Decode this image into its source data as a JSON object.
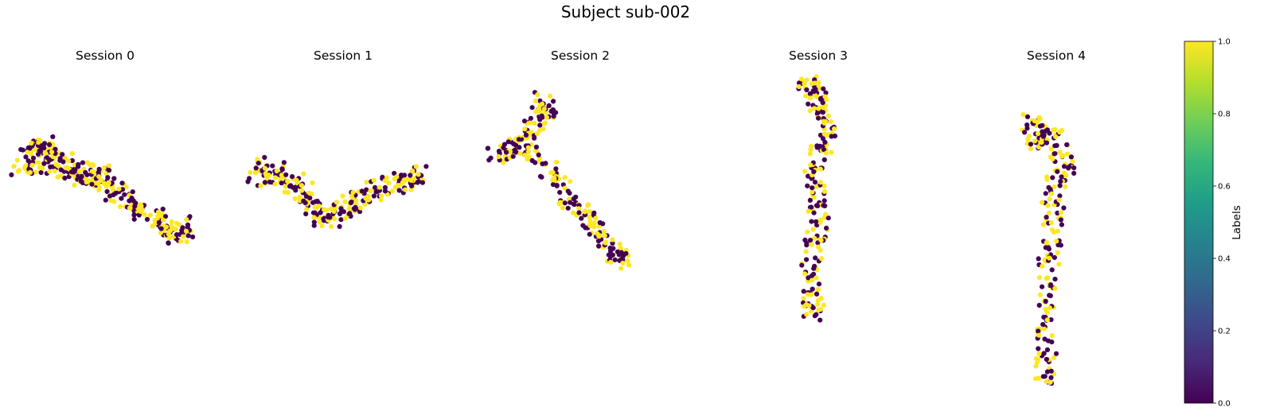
{
  "title": "Subject sub-002",
  "colormap": {
    "name": "viridis",
    "low_color": "#440154",
    "high_color": "#fde725",
    "stops": [
      "#440154",
      "#482878",
      "#3e4989",
      "#31688e",
      "#26828e",
      "#1f9e89",
      "#35b779",
      "#6ece58",
      "#b5de2b",
      "#fde725"
    ]
  },
  "colorbar": {
    "label": "Labels",
    "range": [
      0.0,
      1.0
    ],
    "ticks": [
      "0.0",
      "0.2",
      "0.4",
      "0.6",
      "0.8",
      "1.0"
    ],
    "tick_values": [
      0.0,
      0.2,
      0.4,
      0.6,
      0.8,
      1.0
    ]
  },
  "chart_data": [
    {
      "type": "scatter",
      "title": "Session 0",
      "axes_visible": false,
      "xlim": [
        -1,
        1
      ],
      "ylim": [
        -1,
        1
      ],
      "points": [
        {
          "x": -0.91,
          "y": 0.46,
          "label": 0
        },
        {
          "x": -0.82,
          "y": 0.61,
          "label": 1
        },
        {
          "x": -0.76,
          "y": 0.72,
          "label": 0
        },
        {
          "x": -0.71,
          "y": 0.62,
          "label": 1
        },
        {
          "x": -0.73,
          "y": 0.49,
          "label": 0
        },
        {
          "x": -0.66,
          "y": 0.71,
          "label": 1
        },
        {
          "x": -0.6,
          "y": 0.55,
          "label": 0
        },
        {
          "x": -0.54,
          "y": 0.44,
          "label": 1
        },
        {
          "x": -0.47,
          "y": 0.51,
          "label": 0
        },
        {
          "x": -0.38,
          "y": 0.42,
          "label": 1
        },
        {
          "x": -0.3,
          "y": 0.32,
          "label": 0
        },
        {
          "x": -0.22,
          "y": 0.38,
          "label": 1
        },
        {
          "x": -0.14,
          "y": 0.28,
          "label": 0
        },
        {
          "x": -0.06,
          "y": 0.35,
          "label": 1
        },
        {
          "x": 0.03,
          "y": 0.22,
          "label": 0
        },
        {
          "x": 0.12,
          "y": 0.12,
          "label": 1
        },
        {
          "x": 0.22,
          "y": 0.05,
          "label": 0
        },
        {
          "x": 0.31,
          "y": -0.04,
          "label": 1
        },
        {
          "x": 0.41,
          "y": -0.12,
          "label": 0
        },
        {
          "x": 0.52,
          "y": -0.2,
          "label": 1
        },
        {
          "x": 0.62,
          "y": -0.29,
          "label": 0
        },
        {
          "x": 0.71,
          "y": -0.36,
          "label": 1
        },
        {
          "x": 0.8,
          "y": -0.42,
          "label": 0
        },
        {
          "x": 0.86,
          "y": -0.3,
          "label": 1
        }
      ]
    },
    {
      "type": "scatter",
      "title": "Session 1",
      "axes_visible": false,
      "xlim": [
        -1,
        1
      ],
      "ylim": [
        -1,
        1
      ],
      "points": [
        {
          "x": -0.88,
          "y": 0.3,
          "label": 0
        },
        {
          "x": -0.79,
          "y": 0.44,
          "label": 1
        },
        {
          "x": -0.68,
          "y": 0.38,
          "label": 0
        },
        {
          "x": -0.58,
          "y": 0.3,
          "label": 1
        },
        {
          "x": -0.47,
          "y": 0.25,
          "label": 0
        },
        {
          "x": -0.38,
          "y": 0.16,
          "label": 1
        },
        {
          "x": -0.3,
          "y": 0.03,
          "label": 0
        },
        {
          "x": -0.24,
          "y": -0.12,
          "label": 1
        },
        {
          "x": -0.15,
          "y": -0.2,
          "label": 0
        },
        {
          "x": -0.05,
          "y": -0.18,
          "label": 1
        },
        {
          "x": 0.05,
          "y": -0.11,
          "label": 0
        },
        {
          "x": 0.15,
          "y": -0.02,
          "label": 1
        },
        {
          "x": 0.26,
          "y": 0.06,
          "label": 0
        },
        {
          "x": 0.37,
          "y": 0.14,
          "label": 1
        },
        {
          "x": 0.5,
          "y": 0.2,
          "label": 0
        },
        {
          "x": 0.62,
          "y": 0.25,
          "label": 1
        },
        {
          "x": 0.73,
          "y": 0.3,
          "label": 0
        },
        {
          "x": 0.82,
          "y": 0.27,
          "label": 1
        },
        {
          "x": 0.86,
          "y": 0.38,
          "label": 0
        }
      ]
    },
    {
      "type": "scatter",
      "title": "Session 2",
      "axes_visible": false,
      "xlim": [
        -1,
        1
      ],
      "ylim": [
        -1,
        1
      ],
      "points": [
        {
          "x": -0.9,
          "y": 0.42,
          "label": 1
        },
        {
          "x": -0.8,
          "y": 0.47,
          "label": 0
        },
        {
          "x": -0.7,
          "y": 0.52,
          "label": 1
        },
        {
          "x": -0.6,
          "y": 0.56,
          "label": 0
        },
        {
          "x": -0.5,
          "y": 0.68,
          "label": 1
        },
        {
          "x": -0.45,
          "y": 0.8,
          "label": 0
        },
        {
          "x": -0.4,
          "y": 0.9,
          "label": 1
        },
        {
          "x": -0.34,
          "y": 0.8,
          "label": 0
        },
        {
          "x": -0.5,
          "y": 0.44,
          "label": 1
        },
        {
          "x": -0.34,
          "y": 0.3,
          "label": 0
        },
        {
          "x": -0.22,
          "y": 0.16,
          "label": 1
        },
        {
          "x": -0.12,
          "y": 0.04,
          "label": 0
        },
        {
          "x": -0.02,
          "y": -0.05,
          "label": 1
        },
        {
          "x": 0.08,
          "y": -0.14,
          "label": 0
        },
        {
          "x": 0.18,
          "y": -0.24,
          "label": 1
        },
        {
          "x": 0.28,
          "y": -0.33,
          "label": 0
        },
        {
          "x": 0.36,
          "y": -0.44,
          "label": 1
        },
        {
          "x": 0.42,
          "y": -0.52,
          "label": 0
        }
      ]
    },
    {
      "type": "scatter",
      "title": "Session 3",
      "axes_visible": false,
      "xlim": [
        -1,
        1
      ],
      "ylim": [
        -1,
        1
      ],
      "points": [
        {
          "x": -0.18,
          "y": 0.96,
          "label": 1
        },
        {
          "x": -0.08,
          "y": 0.88,
          "label": 0
        },
        {
          "x": 0.02,
          "y": 0.8,
          "label": 1
        },
        {
          "x": 0.12,
          "y": 0.72,
          "label": 0
        },
        {
          "x": 0.16,
          "y": 0.6,
          "label": 1
        },
        {
          "x": 0.08,
          "y": 0.48,
          "label": 0
        },
        {
          "x": 0.0,
          "y": 0.36,
          "label": 1
        },
        {
          "x": -0.05,
          "y": 0.22,
          "label": 0
        },
        {
          "x": -0.02,
          "y": 0.08,
          "label": 1
        },
        {
          "x": 0.02,
          "y": -0.06,
          "label": 0
        },
        {
          "x": 0.0,
          "y": -0.18,
          "label": 1
        },
        {
          "x": -0.06,
          "y": -0.32,
          "label": 0
        },
        {
          "x": -0.12,
          "y": -0.46,
          "label": 1
        },
        {
          "x": -0.16,
          "y": -0.6,
          "label": 0
        },
        {
          "x": -0.12,
          "y": -0.72,
          "label": 1
        },
        {
          "x": -0.08,
          "y": -0.8,
          "label": 0
        }
      ]
    },
    {
      "type": "scatter",
      "title": "Session 4",
      "axes_visible": false,
      "xlim": [
        -1,
        1
      ],
      "ylim": [
        -1,
        1
      ],
      "points": [
        {
          "x": -0.4,
          "y": 0.8,
          "label": 1
        },
        {
          "x": -0.28,
          "y": 0.68,
          "label": 0
        },
        {
          "x": -0.15,
          "y": 0.76,
          "label": 1
        },
        {
          "x": 0.02,
          "y": 0.72,
          "label": 0
        },
        {
          "x": 0.18,
          "y": 0.62,
          "label": 1
        },
        {
          "x": 0.3,
          "y": 0.54,
          "label": 0
        },
        {
          "x": 0.12,
          "y": 0.44,
          "label": 1
        },
        {
          "x": 0.02,
          "y": 0.32,
          "label": 0
        },
        {
          "x": 0.06,
          "y": 0.18,
          "label": 1
        },
        {
          "x": 0.0,
          "y": 0.02,
          "label": 0
        },
        {
          "x": -0.04,
          "y": -0.14,
          "label": 1
        },
        {
          "x": -0.02,
          "y": -0.3,
          "label": 0
        },
        {
          "x": -0.05,
          "y": -0.46,
          "label": 1
        },
        {
          "x": -0.08,
          "y": -0.62,
          "label": 0
        },
        {
          "x": -0.1,
          "y": -0.78,
          "label": 1
        },
        {
          "x": -0.12,
          "y": -0.92,
          "label": 0
        }
      ]
    }
  ]
}
